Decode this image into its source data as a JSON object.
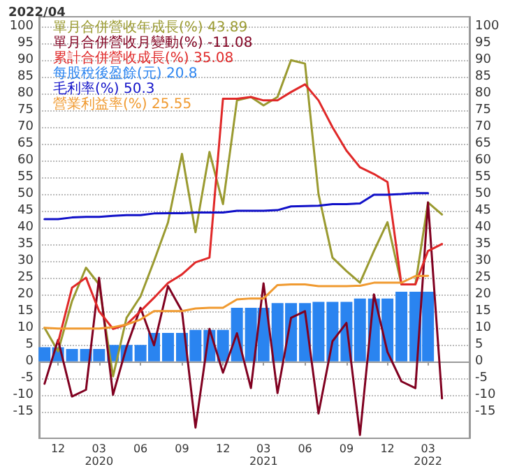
{
  "chart_data": {
    "type": "line",
    "title": "2022/04",
    "x": [
      "2019-11",
      "2019-12",
      "2020-01",
      "2020-02",
      "2020-03",
      "2020-04",
      "2020-05",
      "2020-06",
      "2020-07",
      "2020-08",
      "2020-09",
      "2020-10",
      "2020-11",
      "2020-12",
      "2021-01",
      "2021-02",
      "2021-03",
      "2021-04",
      "2021-05",
      "2021-06",
      "2021-07",
      "2021-08",
      "2021-09",
      "2021-10",
      "2021-11",
      "2021-12",
      "2022-01",
      "2022-02",
      "2022-03",
      "2022-04"
    ],
    "series": [
      {
        "name": "單月合併營收年成長(%) 43.89",
        "color": "#9a9a30",
        "values": [
          10,
          3,
          18,
          28,
          23,
          -4.5,
          13,
          19.4,
          30,
          41.5,
          62,
          38.6,
          62.6,
          47,
          78,
          79,
          76.5,
          79,
          90,
          89,
          50,
          31,
          27,
          23.5,
          33,
          41.6,
          23,
          23,
          47.5,
          43.89
        ]
      },
      {
        "name": "單月合併營收月變動(%) -11.08",
        "color": "#800020",
        "values": [
          -6.7,
          6.4,
          -10.5,
          -8.5,
          25,
          -10,
          4.3,
          16,
          4.8,
          22.5,
          15,
          -19.8,
          9.7,
          -3.4,
          8.4,
          -8,
          23.3,
          -9.5,
          13,
          15,
          -15.6,
          6,
          11.5,
          -22,
          20,
          2.8,
          -6,
          -8,
          47.5,
          -11.08
        ]
      },
      {
        "name": "累計合併營收成長(%) 35.08",
        "color": "#e02828",
        "values": [
          null,
          5.6,
          22,
          25,
          15,
          9.7,
          11,
          15,
          19,
          23.4,
          26,
          29.6,
          31,
          78.5,
          78.5,
          79,
          78,
          78,
          80.5,
          82.8,
          78,
          70,
          63,
          58,
          56,
          53.6,
          23,
          23,
          33,
          35.08
        ]
      },
      {
        "name": "每股稅後盈餘(元) 20.8",
        "type": "bar",
        "color": "#2a84f0",
        "values": [
          4.2,
          4.2,
          3.7,
          3.7,
          3.7,
          4.9,
          4.9,
          4.9,
          8.5,
          8.5,
          8.5,
          9.4,
          9.4,
          9.4,
          16,
          16,
          16,
          17.4,
          17.4,
          17.4,
          17.8,
          17.8,
          17.8,
          18.8,
          18.8,
          18.8,
          20.8,
          20.8,
          20.8,
          null
        ]
      },
      {
        "name": "毛利率(%) 50.3",
        "color": "#1010c8",
        "values": [
          42.5,
          42.5,
          43,
          43.2,
          43.2,
          43.5,
          43.7,
          43.7,
          44.2,
          44.3,
          44.3,
          44.5,
          44.5,
          44.5,
          45,
          45,
          45,
          45.2,
          46.3,
          46.4,
          46.5,
          47,
          47,
          47.2,
          49.8,
          49.8,
          50,
          50.3,
          50.3,
          null
        ]
      },
      {
        "name": "營業利益率(%) 25.55",
        "color": "#f09a30",
        "values": [
          10,
          9.8,
          9.8,
          9.8,
          9.8,
          10.2,
          11,
          12.5,
          15,
          15,
          15,
          15.8,
          16,
          16,
          18.5,
          18.8,
          18.8,
          22.8,
          23,
          23,
          22.5,
          22.5,
          22.5,
          22.6,
          23.5,
          23.5,
          23.5,
          25.5,
          25.55,
          null
        ]
      }
    ],
    "xlim": [
      "2019-10-20",
      "2022-06-01"
    ],
    "xticks": [
      {
        "value": "2019-12",
        "label": "12"
      },
      {
        "value": "2020-03",
        "label": "03\n2020"
      },
      {
        "value": "2020-06",
        "label": "06"
      },
      {
        "value": "2020-09",
        "label": "09"
      },
      {
        "value": "2020-12",
        "label": "12"
      },
      {
        "value": "2021-03",
        "label": "03\n2021"
      },
      {
        "value": "2021-06",
        "label": "06"
      },
      {
        "value": "2021-09",
        "label": "09"
      },
      {
        "value": "2021-12",
        "label": "12"
      },
      {
        "value": "2022-03",
        "label": "03\n2022"
      }
    ],
    "ylim": [
      -23,
      103
    ],
    "yticks": [
      -15,
      -10,
      -5,
      0,
      5,
      10,
      15,
      20,
      25,
      30,
      35,
      40,
      45,
      50,
      55,
      60,
      65,
      70,
      75,
      80,
      85,
      90,
      95,
      100
    ],
    "y2lim": [
      -23,
      103
    ],
    "y2ticks": [
      -15,
      -10,
      -5,
      0,
      5,
      10,
      15,
      20,
      25,
      30,
      35,
      40,
      45,
      50,
      55,
      60,
      65,
      70,
      75,
      80,
      85,
      90,
      95,
      100
    ],
    "grid": "y",
    "legend": "top left",
    "marker": "none",
    "line_style": "solid"
  }
}
